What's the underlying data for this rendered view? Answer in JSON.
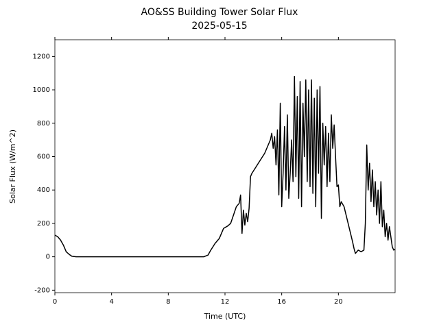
{
  "chart_data": {
    "type": "line",
    "title": "AO&SS Building Tower Solar Flux",
    "subtitle": "2025-05-15",
    "x_label": "Time (UTC)",
    "y_label": "Solar Flux (W/m^2)",
    "xlim": [
      0,
      24
    ],
    "xticks": [
      0,
      4,
      8,
      12,
      16,
      20
    ],
    "ylim": [
      -215,
      1300
    ],
    "yticks": [
      -200,
      0,
      200,
      400,
      600,
      800,
      1000,
      1200
    ],
    "x": [
      0,
      0.2,
      0.4,
      0.6,
      0.8,
      1.0,
      1.2,
      1.5,
      10.5,
      10.8,
      11,
      11.3,
      11.6,
      11.9,
      12.2,
      12.4,
      12.6,
      12.8,
      13,
      13.1,
      13.2,
      13.3,
      13.4,
      13.5,
      13.6,
      13.7,
      13.8,
      13.9,
      14.2,
      14.5,
      14.8,
      15,
      15.2,
      15.3,
      15.4,
      15.5,
      15.6,
      15.7,
      15.8,
      15.9,
      16.0,
      16.1,
      16.2,
      16.3,
      16.4,
      16.5,
      16.6,
      16.7,
      16.8,
      16.9,
      17.0,
      17.1,
      17.2,
      17.3,
      17.4,
      17.5,
      17.6,
      17.7,
      17.8,
      17.9,
      18.0,
      18.1,
      18.2,
      18.3,
      18.4,
      18.5,
      18.6,
      18.7,
      18.8,
      18.9,
      19.0,
      19.1,
      19.2,
      19.3,
      19.4,
      19.5,
      19.6,
      19.7,
      19.8,
      19.9,
      20.0,
      20.1,
      20.2,
      20.4,
      20.6,
      20.8,
      21.0,
      21.1,
      21.2,
      21.4,
      21.6,
      21.8,
      21.9,
      22.0,
      22.1,
      22.2,
      22.3,
      22.4,
      22.5,
      22.6,
      22.7,
      22.8,
      22.9,
      23.0,
      23.1,
      23.2,
      23.3,
      23.4,
      23.5,
      23.6,
      23.8,
      23.9,
      24
    ],
    "series": [
      {
        "color": "#000000",
        "values": [
          130,
          120,
          100,
          70,
          30,
          15,
          3,
          0,
          0,
          10,
          40,
          80,
          110,
          170,
          185,
          200,
          250,
          300,
          320,
          370,
          140,
          280,
          190,
          260,
          210,
          290,
          480,
          500,
          540,
          580,
          620,
          660,
          700,
          740,
          650,
          720,
          550,
          760,
          370,
          920,
          300,
          500,
          780,
          400,
          850,
          350,
          500,
          700,
          450,
          1080,
          480,
          960,
          350,
          1050,
          300,
          920,
          600,
          1060,
          450,
          1000,
          420,
          1060,
          380,
          950,
          300,
          1000,
          500,
          1020,
          230,
          800,
          550,
          780,
          420,
          740,
          450,
          850,
          650,
          790,
          600,
          420,
          430,
          300,
          330,
          300,
          230,
          160,
          90,
          50,
          20,
          40,
          30,
          40,
          200,
          670,
          400,
          560,
          330,
          520,
          300,
          450,
          250,
          400,
          200,
          450,
          180,
          280,
          120,
          200,
          100,
          180,
          60,
          40,
          45
        ]
      }
    ]
  }
}
